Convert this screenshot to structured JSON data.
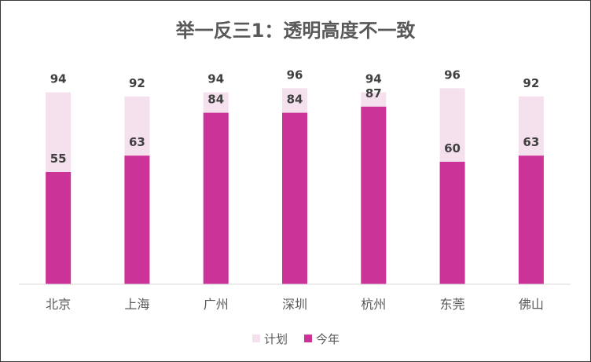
{
  "chart_data": {
    "type": "bar",
    "title": "举一反三1：透明高度不一致",
    "categories": [
      "北京",
      "上海",
      "广州",
      "深圳",
      "杭州",
      "东莞",
      "佛山"
    ],
    "series": [
      {
        "name": "计划",
        "values": [
          94,
          92,
          94,
          96,
          94,
          96,
          92
        ],
        "color": "#f5e1ee"
      },
      {
        "name": "今年",
        "values": [
          55,
          63,
          84,
          84,
          87,
          60,
          63
        ],
        "color": "#cc3399"
      }
    ],
    "overlap": true,
    "ylim": [
      0,
      100
    ],
    "grid": false,
    "legend_position": "bottom",
    "axis_color": "#d9d9d9"
  }
}
